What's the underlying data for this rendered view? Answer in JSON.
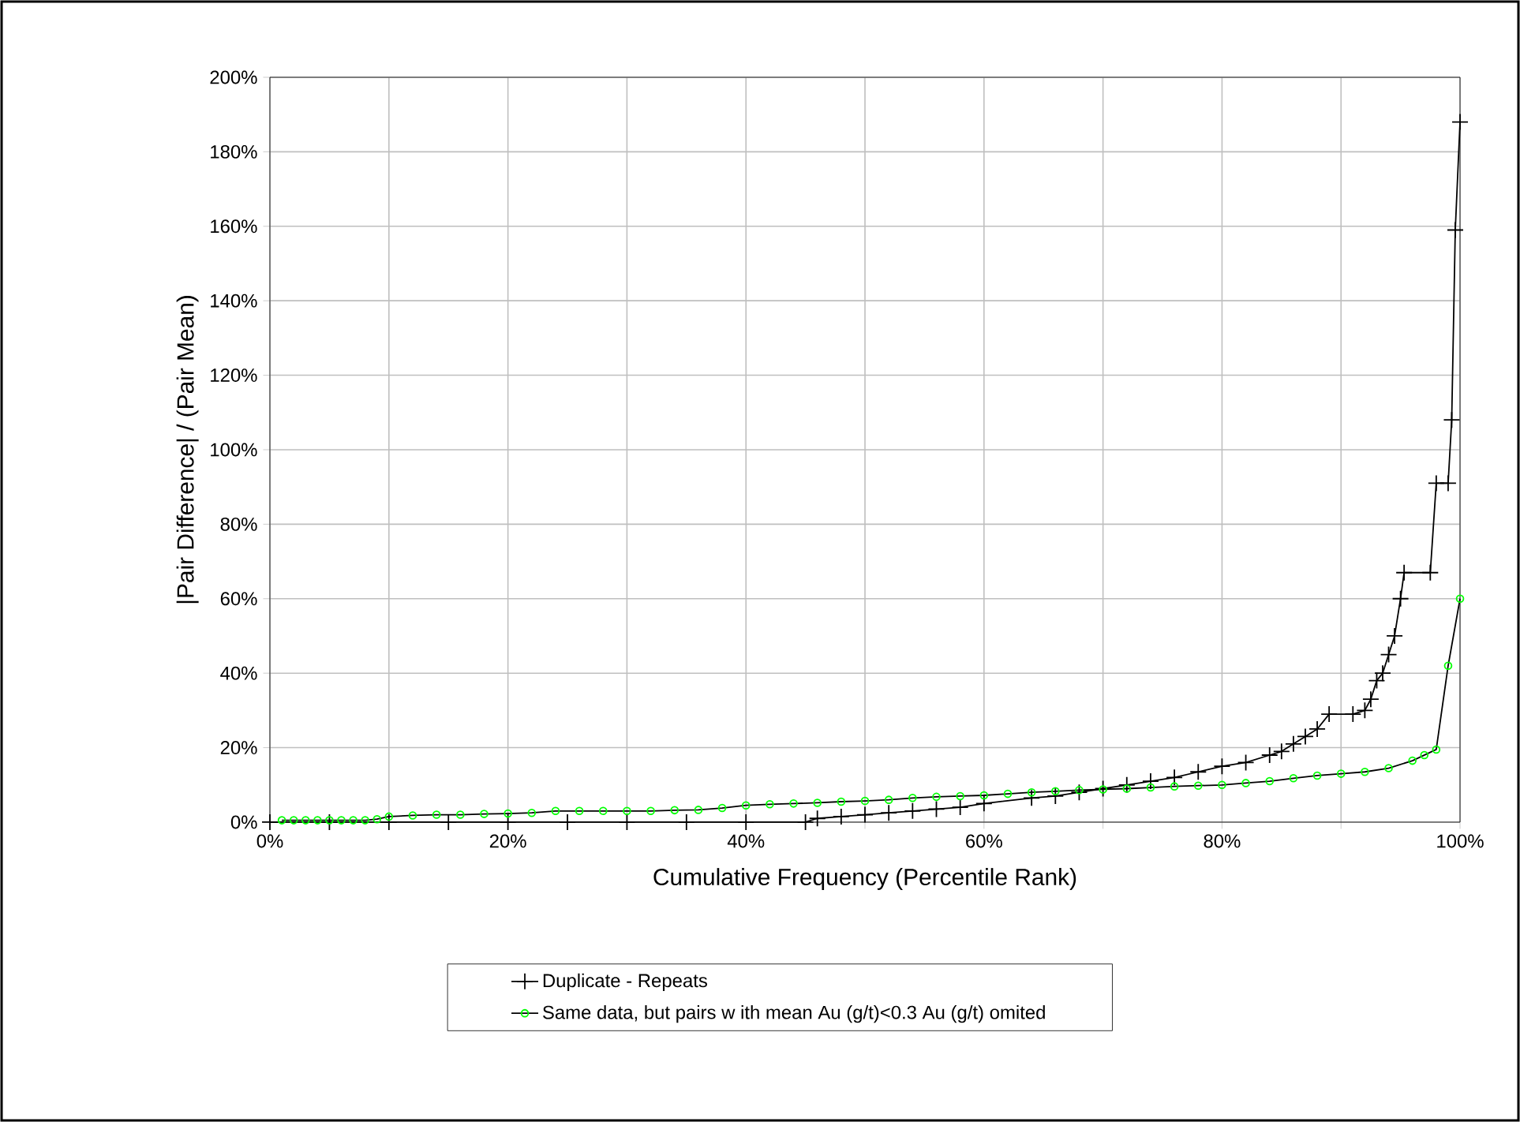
{
  "chart_data": {
    "type": "line",
    "xlabel": "Cumulative Frequency (Percentile Rank)",
    "ylabel": "|Pair Difference| / (Pair Mean)",
    "xlim": [
      0,
      100
    ],
    "ylim": [
      0,
      200
    ],
    "xticks": [
      {
        "value": 0,
        "label": "0%"
      },
      {
        "value": 10,
        "label": null
      },
      {
        "value": 20,
        "label": "20%"
      },
      {
        "value": 30,
        "label": null
      },
      {
        "value": 40,
        "label": "40%"
      },
      {
        "value": 50,
        "label": null
      },
      {
        "value": 60,
        "label": "60%"
      },
      {
        "value": 70,
        "label": null
      },
      {
        "value": 80,
        "label": "80%"
      },
      {
        "value": 90,
        "label": null
      },
      {
        "value": 100,
        "label": "100%"
      }
    ],
    "yticks": [
      {
        "value": 0,
        "label": "0%"
      },
      {
        "value": 20,
        "label": "20%"
      },
      {
        "value": 40,
        "label": "40%"
      },
      {
        "value": 60,
        "label": "60%"
      },
      {
        "value": 80,
        "label": "80%"
      },
      {
        "value": 100,
        "label": "100%"
      },
      {
        "value": 120,
        "label": "120%"
      },
      {
        "value": 140,
        "label": "140%"
      },
      {
        "value": 160,
        "label": "160%"
      },
      {
        "value": 180,
        "label": "180%"
      },
      {
        "value": 200,
        "label": "200%"
      }
    ],
    "grid": true,
    "legend": "bottom",
    "line_style": "solid",
    "series": [
      {
        "name": "Duplicate - Repeats",
        "color": "#000000",
        "marker": "cross",
        "x": [
          0,
          5,
          10,
          15,
          20,
          25,
          30,
          35,
          40,
          45,
          46,
          48,
          50,
          52,
          54,
          56,
          58,
          60,
          64,
          66,
          68,
          70,
          72,
          74,
          76,
          78,
          80,
          82,
          84,
          85,
          86,
          87,
          88,
          89,
          91,
          92,
          92.5,
          93,
          93.5,
          94,
          94.5,
          95,
          95.3,
          97.5,
          98,
          99,
          99.3,
          99.6,
          100
        ],
        "values": [
          0,
          0,
          0,
          0,
          0,
          0,
          0,
          0,
          0,
          0,
          1,
          1.5,
          2,
          2.5,
          3,
          3.5,
          4,
          5,
          6.5,
          7,
          8,
          9,
          10,
          11,
          12,
          13.5,
          15,
          16,
          18,
          19,
          21,
          23,
          25,
          29,
          29,
          30,
          33,
          38,
          40,
          45,
          50,
          60,
          67,
          67,
          91,
          91,
          108,
          159,
          188
        ]
      },
      {
        "name": "Same data, but pairs w ith mean Au (g/t)<0.3 Au (g/t) omited",
        "color": "#00ff00",
        "marker": "circle",
        "x": [
          1,
          2,
          3,
          4,
          5,
          6,
          7,
          8,
          9,
          10,
          12,
          14,
          16,
          18,
          20,
          22,
          24,
          26,
          28,
          30,
          32,
          34,
          36,
          38,
          40,
          42,
          44,
          46,
          48,
          50,
          52,
          54,
          56,
          58,
          60,
          62,
          64,
          66,
          68,
          70,
          72,
          74,
          76,
          78,
          80,
          82,
          84,
          86,
          88,
          90,
          92,
          94,
          96,
          97,
          98,
          99,
          100
        ],
        "values": [
          0.5,
          0.5,
          0.5,
          0.5,
          0.5,
          0.5,
          0.5,
          0.5,
          0.8,
          1.5,
          1.8,
          2,
          2,
          2.2,
          2.3,
          2.5,
          3,
          3,
          3,
          3,
          3,
          3.2,
          3.3,
          3.8,
          4.5,
          4.8,
          5,
          5.2,
          5.5,
          5.7,
          6,
          6.5,
          6.8,
          7,
          7.2,
          7.6,
          8,
          8.3,
          8.6,
          8.8,
          9,
          9.3,
          9.6,
          9.8,
          10,
          10.5,
          11,
          11.8,
          12.5,
          13,
          13.5,
          14.5,
          16.5,
          18,
          19.5,
          42,
          60
        ]
      }
    ]
  }
}
